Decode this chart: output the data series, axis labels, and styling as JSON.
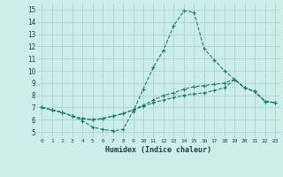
{
  "xlabel": "Humidex (Indice chaleur)",
  "ylabel": "",
  "background_color": "#cceee8",
  "grid_color": "#aad4ce",
  "line_color": "#1a7a6e",
  "xlim": [
    -0.5,
    23.5
  ],
  "ylim": [
    4.5,
    15.5
  ],
  "xticks": [
    0,
    1,
    2,
    3,
    4,
    5,
    6,
    7,
    8,
    9,
    10,
    11,
    12,
    13,
    14,
    15,
    16,
    17,
    18,
    19,
    20,
    21,
    22,
    23
  ],
  "yticks": [
    5,
    6,
    7,
    8,
    9,
    10,
    11,
    12,
    13,
    14,
    15
  ],
  "series": [
    [
      7.0,
      6.8,
      6.6,
      6.3,
      5.9,
      5.4,
      5.2,
      5.1,
      5.2,
      6.7,
      8.5,
      10.3,
      11.7,
      13.7,
      14.9,
      14.8,
      11.8,
      10.9,
      10.0,
      9.3,
      8.6,
      8.3,
      7.5,
      7.4
    ],
    [
      7.0,
      6.8,
      6.6,
      6.3,
      6.1,
      6.0,
      6.1,
      6.3,
      6.5,
      6.8,
      7.1,
      7.4,
      7.6,
      7.8,
      8.0,
      8.1,
      8.2,
      8.4,
      8.6,
      9.3,
      8.6,
      8.3,
      7.5,
      7.4
    ],
    [
      7.0,
      6.8,
      6.6,
      6.3,
      6.1,
      6.0,
      6.1,
      6.3,
      6.5,
      6.8,
      7.2,
      7.6,
      8.0,
      8.2,
      8.5,
      8.7,
      8.8,
      8.9,
      9.0,
      9.3,
      8.6,
      8.3,
      7.5,
      7.4
    ]
  ]
}
